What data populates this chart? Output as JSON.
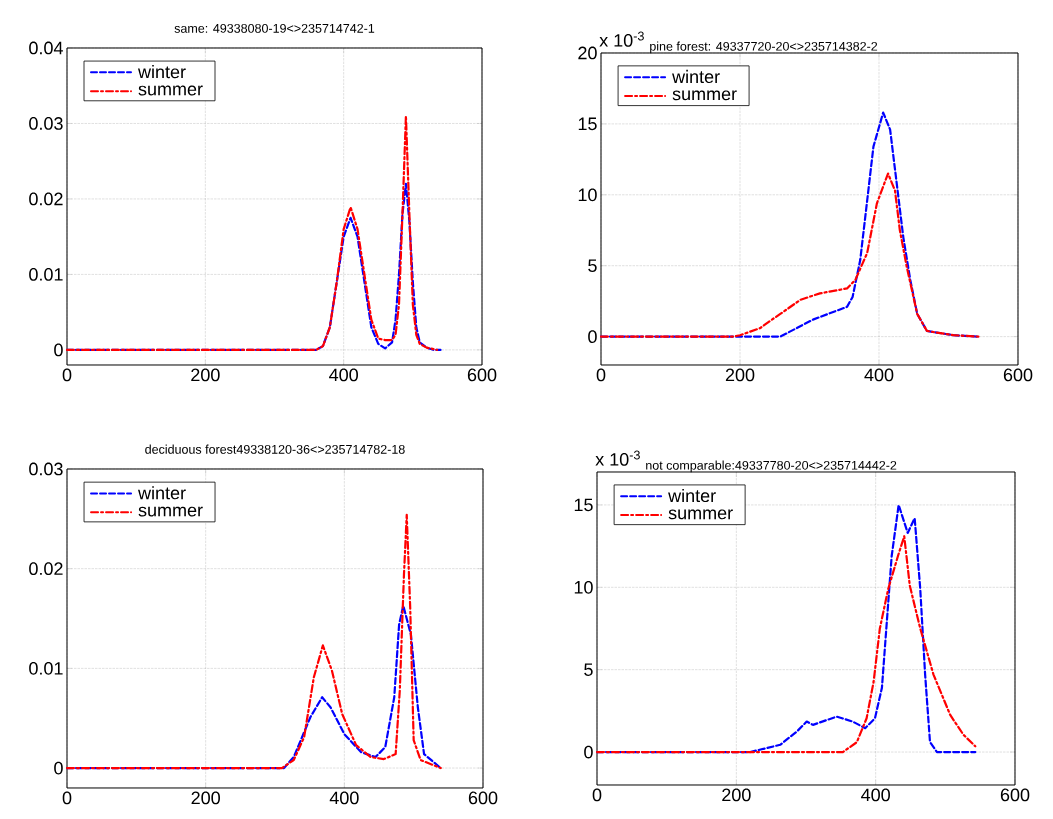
{
  "chart_data": [
    {
      "type": "line",
      "title": "same: 49338080-19<>235714742-1",
      "xlim": [
        0,
        600
      ],
      "xticks": [
        0,
        200,
        400,
        600
      ],
      "ylim": [
        -0.002,
        0.04
      ],
      "yticks": [
        0,
        0.01,
        0.02,
        0.03,
        0.04
      ],
      "grid": true,
      "legend": "top left",
      "series": [
        {
          "name": "winter",
          "color": "#0000ff",
          "line_style": "dashed",
          "x": [
            0,
            360,
            370,
            380,
            390,
            400,
            410,
            420,
            430,
            440,
            450,
            460,
            470,
            475,
            480,
            485,
            490,
            495,
            500,
            505,
            510,
            520,
            530,
            540
          ],
          "values": [
            0,
            0,
            0.0005,
            0.003,
            0.009,
            0.015,
            0.0175,
            0.015,
            0.009,
            0.003,
            0.0008,
            0.0002,
            0.001,
            0.004,
            0.01,
            0.018,
            0.022,
            0.017,
            0.009,
            0.003,
            0.001,
            0.0003,
            0,
            0
          ]
        },
        {
          "name": "summer",
          "color": "#ff0000",
          "line_style": "dashdot",
          "x": [
            0,
            360,
            370,
            380,
            390,
            400,
            410,
            420,
            430,
            440,
            450,
            460,
            470,
            475,
            480,
            485,
            490,
            495,
            500,
            505,
            510,
            520,
            530,
            535
          ],
          "values": [
            0,
            0,
            0.0005,
            0.003,
            0.009,
            0.016,
            0.0189,
            0.016,
            0.01,
            0.004,
            0.0015,
            0.0013,
            0.0013,
            0.002,
            0.006,
            0.018,
            0.031,
            0.018,
            0.006,
            0.002,
            0.0008,
            0.0003,
            0.0001,
            0
          ]
        }
      ]
    },
    {
      "type": "line",
      "title": "pine forest: 49337720-20<>235714382-2",
      "annotations": [
        "x 10$^{-3}$"
      ],
      "xlim": [
        0,
        600
      ],
      "xticks": [
        0,
        200,
        400,
        600
      ],
      "ylim": [
        -2,
        20
      ],
      "yticks": [
        0,
        5,
        10,
        15,
        20
      ],
      "grid": true,
      "legend": "top left",
      "series": [
        {
          "name": "winter",
          "color": "#0000ff",
          "line_style": "dashed",
          "x": [
            0,
            250,
            258,
            305,
            354,
            362,
            373,
            383,
            392,
            406,
            416,
            425,
            435,
            445,
            455,
            469,
            507,
            543
          ],
          "values": [
            0,
            0,
            0,
            1.2,
            2.1,
            2.8,
            5.4,
            9.6,
            13.4,
            15.8,
            14.6,
            11,
            7,
            4,
            1.6,
            0.4,
            0.1,
            0
          ]
        },
        {
          "name": "summer",
          "color": "#ff0000",
          "line_style": "dashdot",
          "x": [
            0,
            190,
            200,
            229,
            243,
            258,
            287,
            315,
            354,
            366,
            383,
            397,
            413,
            423,
            430,
            440,
            455,
            469,
            507,
            543
          ],
          "values": [
            0,
            0,
            0.1,
            0.6,
            1.1,
            1.6,
            2.6,
            3.05,
            3.4,
            4,
            5.9,
            9.4,
            11.5,
            10.3,
            7.5,
            4.9,
            1.6,
            0.4,
            0.1,
            0
          ]
        }
      ]
    },
    {
      "type": "line",
      "title": "deciduous forest49338120-36<>235714782-18",
      "xlim": [
        0,
        600
      ],
      "xticks": [
        0,
        200,
        400,
        600
      ],
      "ylim": [
        -0.002,
        0.03
      ],
      "yticks": [
        0,
        0.01,
        0.02,
        0.03
      ],
      "grid": true,
      "legend": "top left",
      "series": [
        {
          "name": "winter",
          "color": "#0000ff",
          "line_style": "dashed",
          "x": [
            0,
            313,
            327,
            351,
            368,
            380,
            400,
            424,
            445,
            459,
            472,
            479,
            485,
            496,
            506,
            515,
            539
          ],
          "values": [
            0,
            0,
            0.0011,
            0.0051,
            0.0071,
            0.0061,
            0.0034,
            0.0016,
            0.0011,
            0.0021,
            0.0071,
            0.0144,
            0.0163,
            0.0134,
            0.0061,
            0.0014,
            0
          ]
        },
        {
          "name": "summer",
          "color": "#ff0000",
          "line_style": "dashdot",
          "x": [
            0,
            310,
            327,
            342,
            356,
            369,
            382,
            397,
            417,
            438,
            457,
            474,
            480,
            486,
            490,
            495,
            500,
            510,
            539
          ],
          "values": [
            0,
            0,
            0.0008,
            0.0031,
            0.0091,
            0.0123,
            0.0098,
            0.0054,
            0.0023,
            0.0011,
            0.0009,
            0.0014,
            0.0078,
            0.0194,
            0.0254,
            0.0161,
            0.0028,
            0.0008,
            0
          ]
        }
      ]
    },
    {
      "type": "line",
      "title": "not comparable:49337780-20<>235714442-2",
      "annotations": [
        "x 10$^{-3}$"
      ],
      "xlim": [
        0,
        600
      ],
      "xticks": [
        0,
        200,
        400,
        600
      ],
      "ylim": [
        -2,
        17
      ],
      "yticks": [
        0,
        5,
        10,
        15
      ],
      "grid": true,
      "legend": "top left",
      "series": [
        {
          "name": "winter",
          "color": "#0000ff",
          "line_style": "dashed",
          "x": [
            0,
            220,
            263,
            287,
            301,
            310,
            344,
            367,
            385,
            399,
            409,
            416,
            423,
            433,
            446,
            456,
            464,
            471,
            478,
            488,
            543
          ],
          "values": [
            0,
            0,
            0.44,
            1.25,
            1.85,
            1.65,
            2.15,
            1.85,
            1.45,
            2.05,
            3.9,
            7.9,
            11.9,
            15,
            13.3,
            14.2,
            9.9,
            4.7,
            0.6,
            0,
            0
          ]
        },
        {
          "name": "summer",
          "color": "#ff0000",
          "line_style": "dashdot",
          "x": [
            0,
            353,
            373,
            387,
            397,
            406,
            418,
            432,
            441,
            449,
            464,
            483,
            507,
            526,
            543
          ],
          "values": [
            0,
            0,
            0.6,
            2.05,
            4.25,
            7.5,
            9.9,
            11.9,
            13.1,
            10.1,
            7.5,
            4.7,
            2.25,
            1.05,
            0.35
          ]
        }
      ]
    }
  ]
}
